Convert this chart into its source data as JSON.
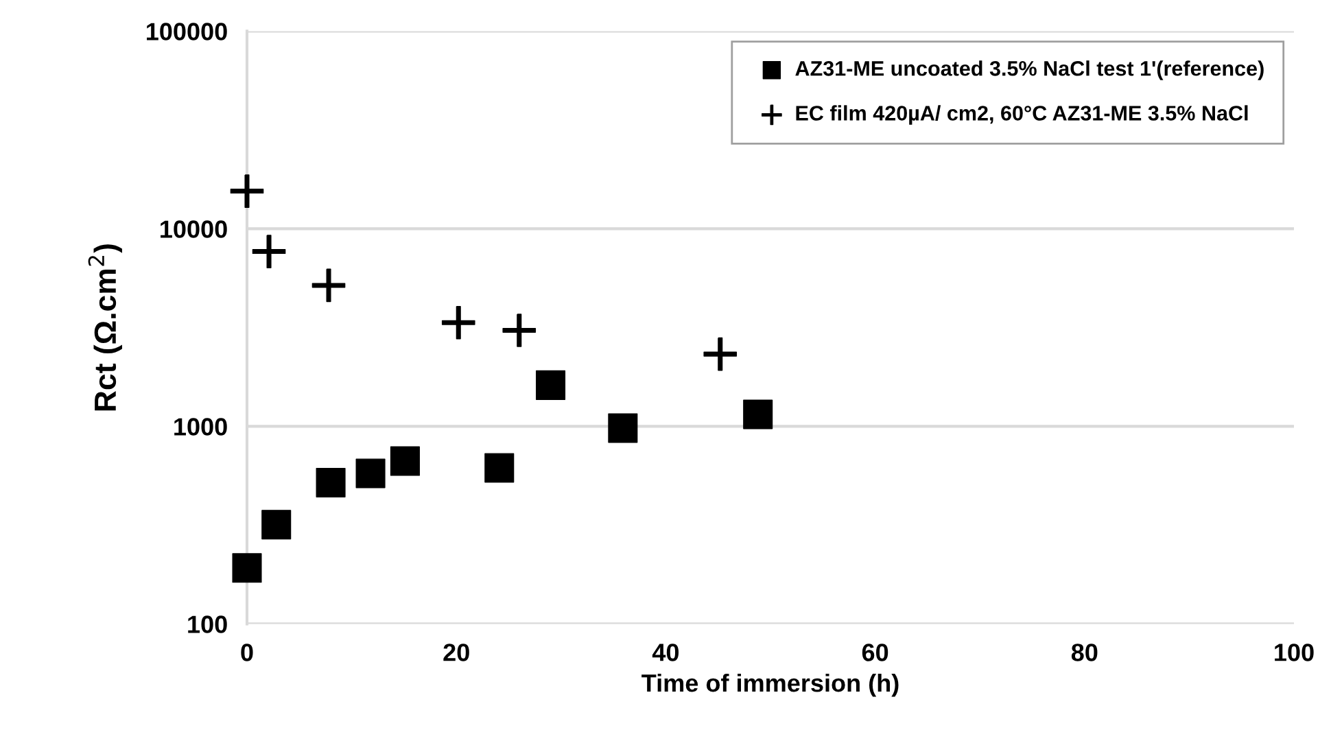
{
  "chart_data": {
    "type": "scatter",
    "xlabel": "Time of immersion (h)",
    "ylabel": "Rct (Ω.cm$^{2}$)",
    "xlim": [
      0,
      100
    ],
    "xticks": [
      0,
      20,
      40,
      60,
      80,
      100
    ],
    "ylim": [
      100,
      100000
    ],
    "yticks": [
      100,
      1000,
      10000,
      100000
    ],
    "log": "y",
    "grid": "y",
    "legend": "top right",
    "series": [
      {
        "name": "AZ31-ME uncoated 3.5% NaCl test 1'(reference)",
        "color": "#000000",
        "marker": "square",
        "x": [
          0,
          2.8,
          8.0,
          11.8,
          15.1,
          24.1,
          29.0,
          35.9,
          48.8
        ],
        "values": [
          192,
          318,
          519,
          578,
          667,
          616,
          1616,
          980,
          1150
        ]
      },
      {
        "name": "EC film 420µA/ cm2, 60°C AZ31-ME 3.5% NaCl",
        "color": "#000000",
        "marker": "cross",
        "x": [
          0,
          2.1,
          7.8,
          20.2,
          26.0,
          45.2
        ],
        "values": [
          15500,
          7670,
          5170,
          3350,
          3060,
          2320
        ]
      }
    ]
  }
}
